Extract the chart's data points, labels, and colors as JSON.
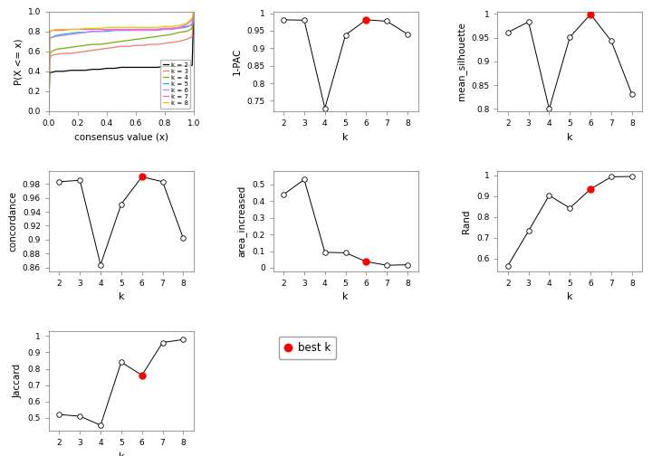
{
  "ecdf": {
    "x": [
      0.0,
      0.005,
      0.01,
      0.02,
      0.05,
      0.1,
      0.15,
      0.2,
      0.25,
      0.3,
      0.35,
      0.4,
      0.45,
      0.5,
      0.55,
      0.6,
      0.65,
      0.7,
      0.75,
      0.8,
      0.85,
      0.9,
      0.95,
      0.98,
      0.99,
      1.0
    ],
    "k2": [
      0.0,
      0.38,
      0.39,
      0.39,
      0.4,
      0.4,
      0.41,
      0.41,
      0.41,
      0.42,
      0.42,
      0.43,
      0.43,
      0.44,
      0.44,
      0.44,
      0.44,
      0.44,
      0.44,
      0.45,
      0.45,
      0.45,
      0.46,
      0.46,
      0.46,
      1.0
    ],
    "k3": [
      0.0,
      0.53,
      0.54,
      0.56,
      0.57,
      0.58,
      0.58,
      0.59,
      0.6,
      0.61,
      0.62,
      0.63,
      0.64,
      0.65,
      0.65,
      0.66,
      0.66,
      0.67,
      0.67,
      0.68,
      0.69,
      0.7,
      0.72,
      0.74,
      0.75,
      1.0
    ],
    "k4": [
      0.0,
      0.56,
      0.58,
      0.6,
      0.62,
      0.63,
      0.64,
      0.65,
      0.66,
      0.67,
      0.67,
      0.68,
      0.69,
      0.7,
      0.71,
      0.72,
      0.73,
      0.74,
      0.75,
      0.76,
      0.77,
      0.79,
      0.8,
      0.82,
      0.84,
      1.0
    ],
    "k5": [
      0.0,
      0.72,
      0.73,
      0.74,
      0.76,
      0.77,
      0.78,
      0.79,
      0.79,
      0.8,
      0.8,
      0.8,
      0.81,
      0.81,
      0.81,
      0.82,
      0.82,
      0.82,
      0.82,
      0.83,
      0.83,
      0.84,
      0.85,
      0.86,
      0.87,
      1.0
    ],
    "k6": [
      0.0,
      0.73,
      0.74,
      0.74,
      0.75,
      0.76,
      0.77,
      0.78,
      0.79,
      0.8,
      0.8,
      0.81,
      0.81,
      0.81,
      0.81,
      0.81,
      0.81,
      0.81,
      0.81,
      0.82,
      0.82,
      0.83,
      0.84,
      0.86,
      0.88,
      1.0
    ],
    "k7": [
      0.0,
      0.79,
      0.8,
      0.81,
      0.81,
      0.81,
      0.82,
      0.82,
      0.82,
      0.82,
      0.82,
      0.82,
      0.82,
      0.82,
      0.82,
      0.82,
      0.82,
      0.82,
      0.82,
      0.83,
      0.83,
      0.84,
      0.87,
      0.9,
      0.92,
      1.0
    ],
    "k8": [
      0.0,
      0.8,
      0.81,
      0.81,
      0.82,
      0.82,
      0.82,
      0.82,
      0.83,
      0.83,
      0.83,
      0.84,
      0.84,
      0.84,
      0.84,
      0.84,
      0.84,
      0.84,
      0.84,
      0.85,
      0.85,
      0.86,
      0.88,
      0.92,
      0.94,
      1.0
    ],
    "colors": [
      "#000000",
      "#f8766d",
      "#7cae00",
      "#00bfc4",
      "#c77cff",
      "#ff61cc",
      "#e5c900"
    ],
    "labels": [
      "k = 2",
      "k = 3",
      "k = 4",
      "k = 5",
      "k = 6",
      "k = 7",
      "k = 8"
    ],
    "xlabel": "consensus value (x)",
    "ylabel": "P(X <= x)",
    "ylim": [
      0.0,
      1.0
    ],
    "xlim": [
      0.0,
      1.0
    ]
  },
  "pac": {
    "k": [
      2,
      3,
      4,
      5,
      6,
      7,
      8
    ],
    "y": [
      0.981,
      0.98,
      0.729,
      0.938,
      0.981,
      0.977,
      0.94
    ],
    "best_k": 6,
    "ylabel": "1-PAC",
    "ylim": [
      0.72,
      1.005
    ],
    "yticks": [
      0.75,
      0.8,
      0.85,
      0.9,
      0.95,
      1.0
    ]
  },
  "silhouette": {
    "k": [
      2,
      3,
      4,
      5,
      6,
      7,
      8
    ],
    "y": [
      0.961,
      0.983,
      0.8,
      0.951,
      0.999,
      0.943,
      0.831
    ],
    "best_k": 6,
    "ylabel": "mean_silhouette",
    "ylim": [
      0.795,
      1.005
    ],
    "yticks": [
      0.8,
      0.85,
      0.9,
      0.95,
      1.0
    ]
  },
  "concordance": {
    "k": [
      2,
      3,
      4,
      5,
      6,
      7,
      8
    ],
    "y": [
      0.983,
      0.985,
      0.864,
      0.951,
      0.99,
      0.983,
      0.902
    ],
    "best_k": 6,
    "ylabel": "concordance",
    "ylim": [
      0.855,
      0.998
    ],
    "yticks": [
      0.86,
      0.88,
      0.9,
      0.92,
      0.94,
      0.96,
      0.98
    ]
  },
  "area_increased": {
    "k": [
      2,
      3,
      4,
      5,
      6,
      7,
      8
    ],
    "y": [
      0.44,
      0.53,
      0.093,
      0.09,
      0.037,
      0.015,
      0.018
    ],
    "best_k": 6,
    "ylabel": "area_increased",
    "ylim": [
      -0.02,
      0.58
    ],
    "yticks": [
      0.0,
      0.1,
      0.2,
      0.3,
      0.4,
      0.5
    ]
  },
  "rand": {
    "k": [
      2,
      3,
      4,
      5,
      6,
      7,
      8
    ],
    "y": [
      0.566,
      0.733,
      0.904,
      0.843,
      0.934,
      0.993,
      0.995
    ],
    "best_k": 6,
    "ylabel": "Rand",
    "ylim": [
      0.54,
      1.02
    ],
    "yticks": [
      0.6,
      0.7,
      0.8,
      0.9,
      1.0
    ]
  },
  "jaccard": {
    "k": [
      2,
      3,
      4,
      5,
      6,
      7,
      8
    ],
    "y": [
      0.52,
      0.51,
      0.455,
      0.84,
      0.76,
      0.96,
      0.978
    ],
    "best_k": 6,
    "ylabel": "Jaccard",
    "ylim": [
      0.42,
      1.03
    ],
    "yticks": [
      0.5,
      0.6,
      0.7,
      0.8,
      0.9,
      1.0
    ]
  },
  "line_color": "#000000",
  "open_color": "white",
  "best_color": "red",
  "marker_size": 4,
  "xlabel_k": "k",
  "background": "white",
  "legend_best_label": "best k"
}
